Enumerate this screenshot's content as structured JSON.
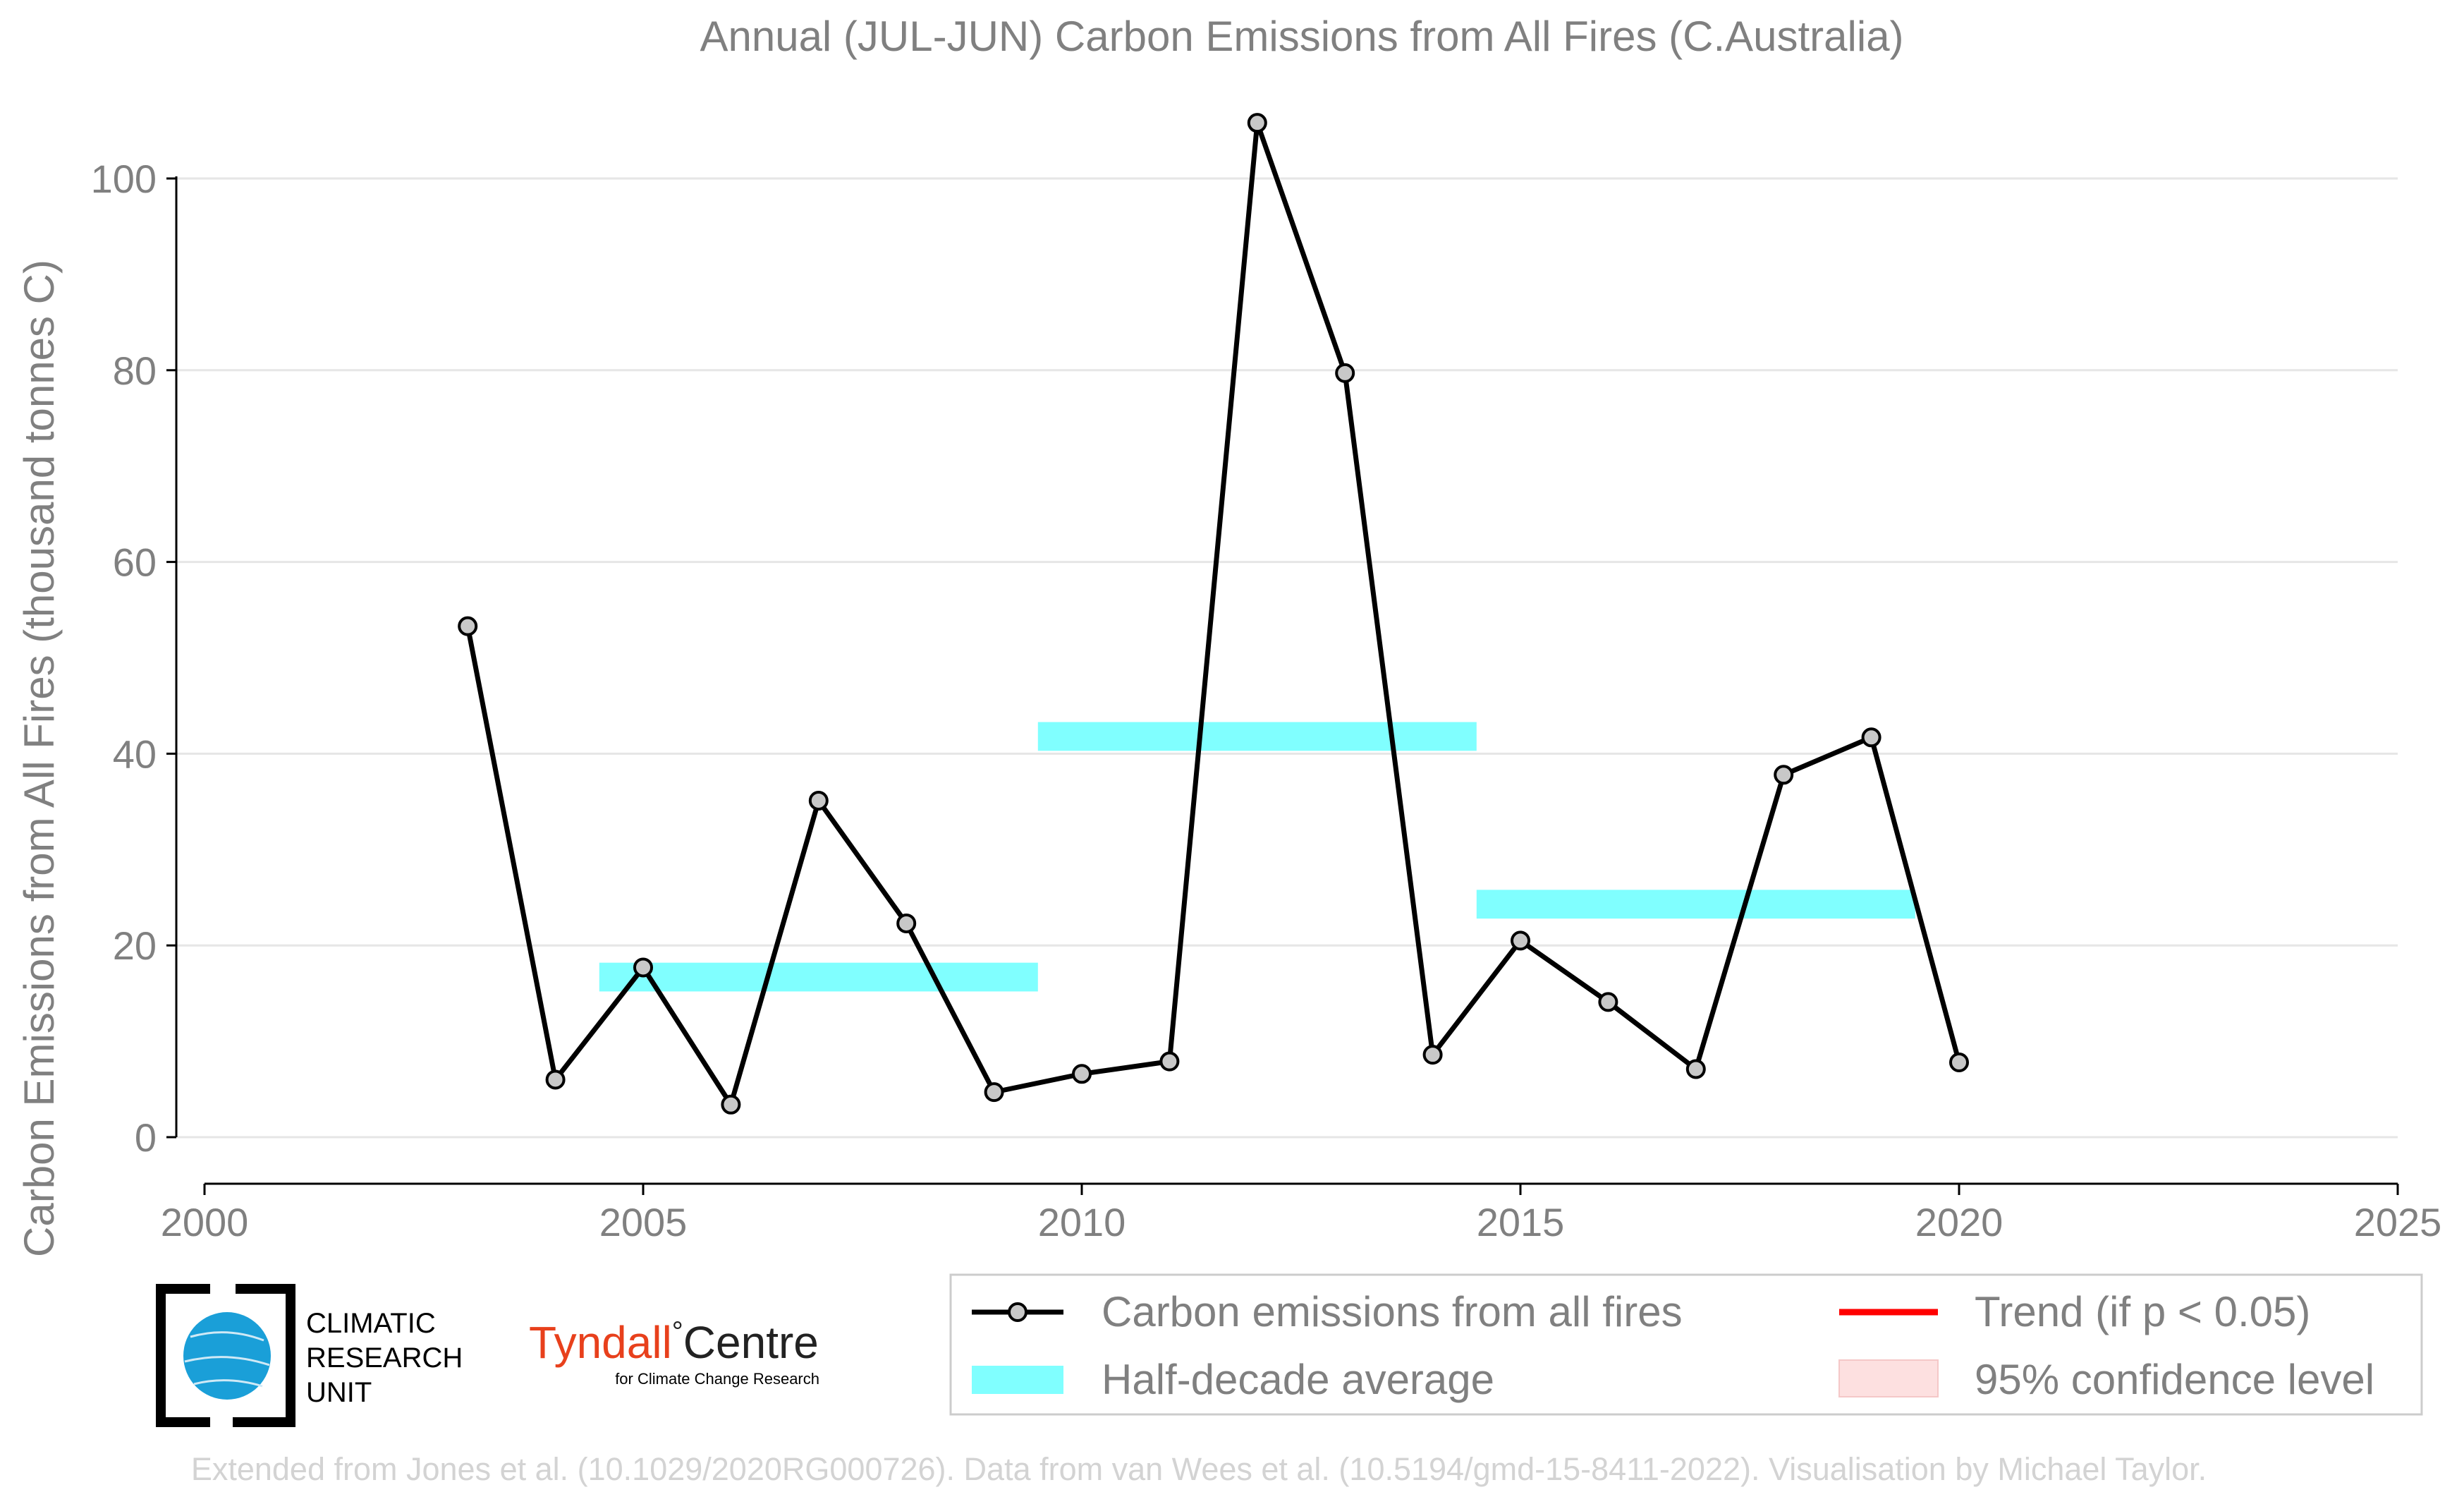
{
  "chart_data": {
    "type": "line",
    "title": "Annual (JUL-JUN) Carbon Emissions from All Fires (C.Australia)",
    "xlabel": "",
    "ylabel": "Carbon Emissions from All Fires (thousand tonnes C)",
    "xlim": [
      2000,
      2025
    ],
    "ylim": [
      0,
      106
    ],
    "x_ticks": [
      2000,
      2005,
      2010,
      2015,
      2020,
      2025
    ],
    "y_ticks": [
      0,
      20,
      40,
      60,
      80,
      100
    ],
    "grid": "horizontal",
    "legend_position": "bottom-right",
    "series": [
      {
        "name": "Carbon emissions from all fires",
        "color": "#000000",
        "marker_color": "#c8c8c8",
        "x": [
          2003,
          2004,
          2005,
          2006,
          2007,
          2008,
          2009,
          2010,
          2011,
          2012,
          2013,
          2014,
          2015,
          2016,
          2017,
          2018,
          2019,
          2020
        ],
        "y": [
          53.3,
          6.0,
          17.7,
          3.4,
          35.1,
          22.3,
          4.7,
          6.6,
          7.9,
          105.8,
          79.7,
          8.6,
          20.5,
          14.1,
          7.1,
          37.8,
          41.7,
          7.8
        ]
      }
    ],
    "half_decade_average": {
      "name": "Half-decade average",
      "color": "#80ffff",
      "segments": [
        {
          "x_start": 2004.5,
          "x_end": 2009.5,
          "value": 16.7
        },
        {
          "x_start": 2009.5,
          "x_end": 2014.5,
          "value": 41.8
        },
        {
          "x_start": 2014.5,
          "x_end": 2019.5,
          "value": 24.3
        }
      ]
    },
    "legend_entries": [
      {
        "label": "Carbon emissions from all fires",
        "type": "line-marker",
        "color": "#000000"
      },
      {
        "label": "Trend (if p < 0.05)",
        "type": "line",
        "color": "#ff0000"
      },
      {
        "label": "Half-decade average",
        "type": "band",
        "color": "#80ffff"
      },
      {
        "label": "95% confidence level",
        "type": "band",
        "color": "#fde0e0"
      }
    ]
  },
  "logos": {
    "cru_lines": [
      "CLIMATIC",
      "RESEARCH",
      "UNIT"
    ],
    "tyndall_name": "Tyndall",
    "tyndall_degree": "°",
    "tyndall_centre": "Centre",
    "tyndall_sub": "for Climate Change Research"
  },
  "credit": "Extended from Jones et al. (10.1029/2020RG000726). Data from van Wees et al. (10.5194/gmd-15-8411-2022). Visualisation by Michael Taylor."
}
